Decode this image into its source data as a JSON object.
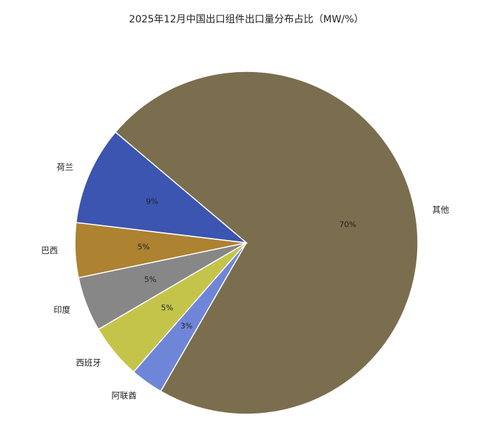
{
  "chart_data": {
    "type": "pie",
    "title": "2025年12月中国出口组件出口量分布占比（MW/%）",
    "categories": [
      "其他",
      "阿联酋",
      "西班牙",
      "印度",
      "巴西",
      "荷兰"
    ],
    "values": [
      70,
      3,
      5,
      5,
      5,
      9
    ],
    "value_labels": [
      "70%",
      "3%",
      "5%",
      "5%",
      "5%",
      "9%"
    ],
    "colors": [
      "#7a6e4f",
      "#6f86d8",
      "#c5c44a",
      "#878787",
      "#ad8230",
      "#3b55b0"
    ]
  }
}
